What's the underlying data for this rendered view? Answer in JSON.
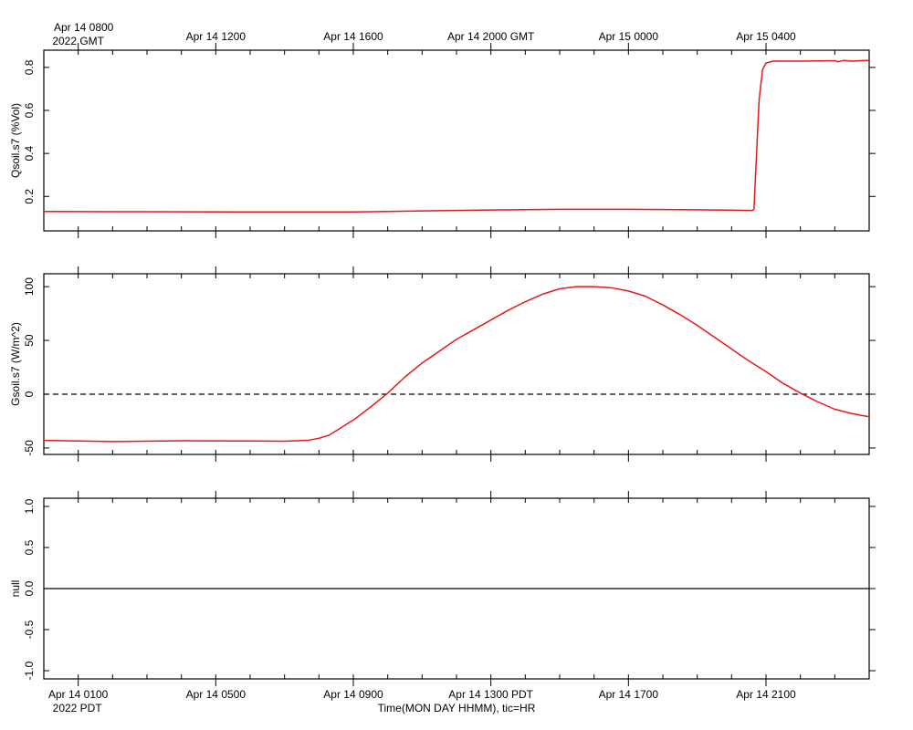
{
  "chart_data": {
    "type": "line",
    "x_unit": "hours since Apr 14 0100 PDT",
    "top_axis": {
      "labels": [
        {
          "t": 0,
          "lines": [
            "Apr 14 0800",
            "2022 GMT"
          ]
        },
        {
          "t": 4,
          "lines": [
            "Apr 14 1200"
          ]
        },
        {
          "t": 8,
          "lines": [
            "Apr 14 1600"
          ]
        },
        {
          "t": 12,
          "lines": [
            "Apr 14 2000 GMT"
          ]
        },
        {
          "t": 16,
          "lines": [
            "Apr 15 0000"
          ]
        },
        {
          "t": 20,
          "lines": [
            "Apr 15 0400"
          ]
        }
      ]
    },
    "bottom_axis": {
      "labels": [
        {
          "t": 0,
          "lines": [
            "Apr 14 0100",
            "2022 PDT"
          ]
        },
        {
          "t": 4,
          "lines": [
            "Apr 14 0500"
          ]
        },
        {
          "t": 8,
          "lines": [
            "Apr 14 0900"
          ]
        },
        {
          "t": 12,
          "lines": [
            "Apr 14 1300 PDT"
          ]
        },
        {
          "t": 16,
          "lines": [
            "Apr 14 1700"
          ]
        },
        {
          "t": 20,
          "lines": [
            "Apr 14 2100"
          ]
        }
      ],
      "title": "Time(MON DAY HHMM), tic=HR"
    },
    "xlim": [
      -1,
      23
    ],
    "panels": [
      {
        "ylabel": "Qsoil.s7 (%Vol)",
        "ylim": [
          0.04,
          0.88
        ],
        "yticks": [
          0.2,
          0.4,
          0.6,
          0.8
        ],
        "ytick_labels": [
          "0.2",
          "0.4",
          "0.6",
          "0.8"
        ],
        "zero_line": "none",
        "series": [
          {
            "color": "#e31a1c",
            "points": [
              [
                -1,
                0.13
              ],
              [
                2,
                0.129
              ],
              [
                5,
                0.128
              ],
              [
                8,
                0.128
              ],
              [
                9,
                0.13
              ],
              [
                10,
                0.133
              ],
              [
                12,
                0.137
              ],
              [
                14,
                0.14
              ],
              [
                16,
                0.14
              ],
              [
                18,
                0.138
              ],
              [
                19.6,
                0.135
              ],
              [
                19.65,
                0.14
              ],
              [
                19.72,
                0.38
              ],
              [
                19.8,
                0.65
              ],
              [
                19.9,
                0.79
              ],
              [
                20,
                0.82
              ],
              [
                20.2,
                0.829
              ],
              [
                21,
                0.829
              ],
              [
                22,
                0.831
              ],
              [
                22.1,
                0.826
              ],
              [
                22.25,
                0.832
              ],
              [
                22.5,
                0.829
              ],
              [
                22.9,
                0.832
              ],
              [
                23.3,
                0.833
              ],
              [
                23.45,
                0.82
              ],
              [
                23.6,
                0.83
              ],
              [
                23.8,
                0.832
              ],
              [
                23.95,
                0.833
              ],
              [
                24.05,
                0.81
              ],
              [
                24.1,
                0.79
              ],
              [
                24.15,
                0.81
              ],
              [
                24.25,
                0.83
              ],
              [
                24.35,
                0.826
              ],
              [
                24.45,
                0.808
              ]
            ]
          }
        ]
      },
      {
        "ylabel": "Gsoil.s7 (W/m^2)",
        "ylim": [
          -56,
          112
        ],
        "yticks": [
          -50,
          0,
          50,
          100
        ],
        "ytick_labels": [
          "-50",
          "0",
          "50",
          "100"
        ],
        "zero_line": "dashed",
        "series": [
          {
            "color": "#e31a1c",
            "points": [
              [
                -1,
                -43
              ],
              [
                1,
                -44
              ],
              [
                3,
                -43.3
              ],
              [
                5,
                -43.5
              ],
              [
                6,
                -43.7
              ],
              [
                6.7,
                -42.8
              ],
              [
                7,
                -41
              ],
              [
                7.3,
                -38
              ],
              [
                7.6,
                -32
              ],
              [
                8,
                -24
              ],
              [
                8.5,
                -12
              ],
              [
                9,
                1
              ],
              [
                9.5,
                16
              ],
              [
                10,
                29
              ],
              [
                10.5,
                40
              ],
              [
                11,
                51
              ],
              [
                11.5,
                60
              ],
              [
                12,
                69
              ],
              [
                12.5,
                78
              ],
              [
                13,
                86
              ],
              [
                13.5,
                93
              ],
              [
                14,
                98
              ],
              [
                14.5,
                100
              ],
              [
                15,
                100
              ],
              [
                15.5,
                99
              ],
              [
                16,
                96
              ],
              [
                16.5,
                91
              ],
              [
                17,
                83
              ],
              [
                17.5,
                74
              ],
              [
                18,
                64
              ],
              [
                18.5,
                53
              ],
              [
                19,
                42
              ],
              [
                19.5,
                31
              ],
              [
                20,
                21
              ],
              [
                20.5,
                10
              ],
              [
                21,
                1
              ],
              [
                21.5,
                -7
              ],
              [
                22,
                -14
              ],
              [
                22.5,
                -18
              ],
              [
                23,
                -21
              ],
              [
                23.5,
                -23
              ],
              [
                24,
                -24
              ],
              [
                24.5,
                -25.5
              ],
              [
                25,
                -27
              ],
              [
                25.5,
                -28
              ],
              [
                26,
                -28
              ]
            ]
          }
        ]
      },
      {
        "ylabel": "null",
        "ylim": [
          -1.1,
          1.1
        ],
        "yticks": [
          -1.0,
          -0.5,
          0.0,
          0.5,
          1.0
        ],
        "ytick_labels": [
          "-1.0",
          "-0.5",
          "0.0",
          "0.5",
          "1.0"
        ],
        "zero_line": "solid",
        "series": []
      }
    ],
    "grid": false,
    "legend": "none"
  }
}
